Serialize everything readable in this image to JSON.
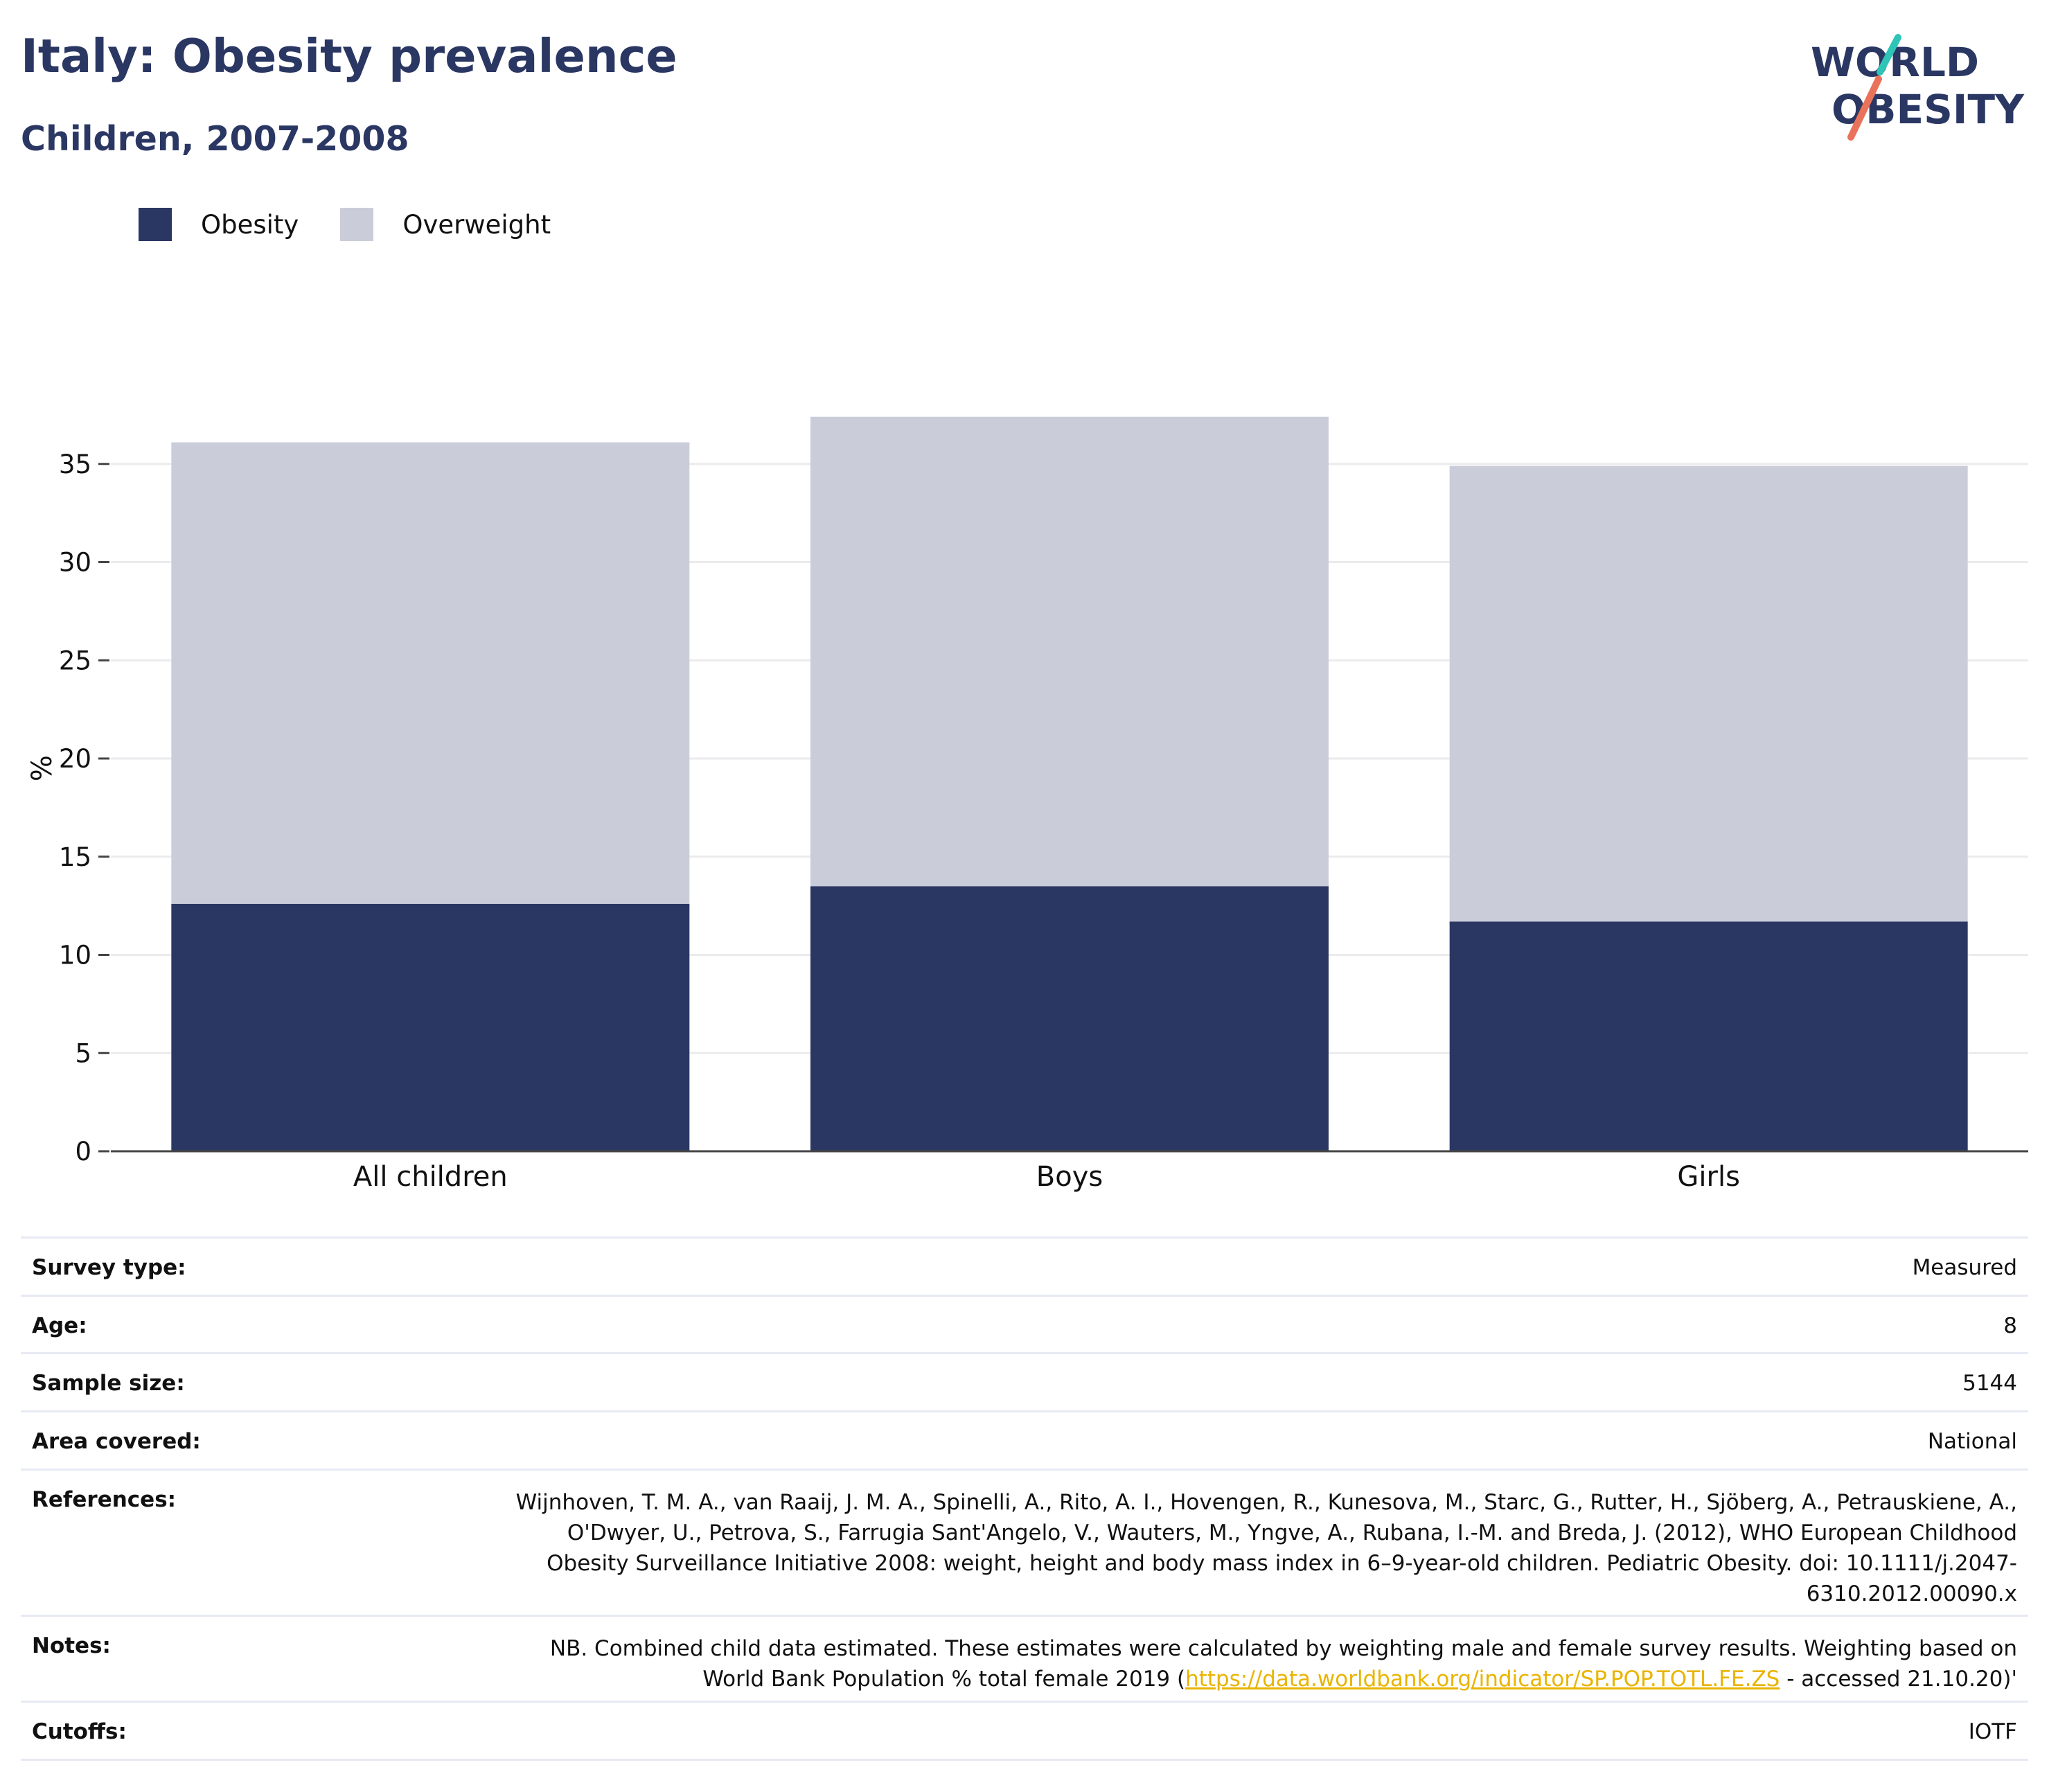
{
  "header": {
    "title": "Italy: Obesity prevalence",
    "subtitle": "Children, 2007-2008"
  },
  "logo": {
    "line1": "WORLD",
    "line2": "OBESITY",
    "text_color": "#2b3763",
    "slash_top_color": "#2ec4b6",
    "slash_bottom_color": "#e8735a"
  },
  "colors": {
    "obesity": "#2b3763",
    "overweight": "#cacdd9",
    "link": "#e9b400"
  },
  "chart_data": {
    "type": "bar",
    "stacked": true,
    "categories": [
      "All children",
      "Boys",
      "Girls"
    ],
    "series": [
      {
        "name": "Obesity",
        "values": [
          12.6,
          13.5,
          11.7
        ]
      },
      {
        "name": "Overweight",
        "values": [
          23.5,
          23.9,
          23.2
        ]
      }
    ],
    "title": "",
    "xlabel": "",
    "ylabel": "%",
    "ylim": [
      0,
      38.5
    ],
    "yticks": [
      0,
      5,
      10,
      15,
      20,
      25,
      30,
      35
    ],
    "grid": true,
    "legend_position": "top-left"
  },
  "info": {
    "survey_type": {
      "label": "Survey type:",
      "value": "Measured"
    },
    "age": {
      "label": "Age:",
      "value": "8"
    },
    "sample_size": {
      "label": "Sample size:",
      "value": "5144"
    },
    "area_covered": {
      "label": "Area covered:",
      "value": "National"
    },
    "references": {
      "label": "References:",
      "value": "Wijnhoven, T. M. A., van Raaij, J. M. A., Spinelli, A., Rito, A. I., Hovengen, R., Kunesova, M., Starc, G., Rutter, H., Sjöberg, A., Petrauskiene, A., O'Dwyer, U., Petrova, S., Farrugia Sant'Angelo, V., Wauters, M., Yngve, A., Rubana, I.-M. and Breda, J. (2012), WHO European Childhood Obesity Surveillance Initiative 2008: weight, height and body mass index in 6–9-year-old children. Pediatric Obesity. doi: 10.1111/j.2047-6310.2012.00090.x"
    },
    "notes": {
      "label": "Notes:",
      "text_before": "NB. Combined child data estimated. These estimates were calculated by weighting male and female survey results. Weighting based on World Bank Population % total female 2019 (",
      "link_text": "https://data.worldbank.org/indicator/SP.POP.TOTL.FE.ZS",
      "text_after": " - accessed 21.10.20)'"
    },
    "cutoffs": {
      "label": "Cutoffs:",
      "value": "IOTF"
    }
  }
}
